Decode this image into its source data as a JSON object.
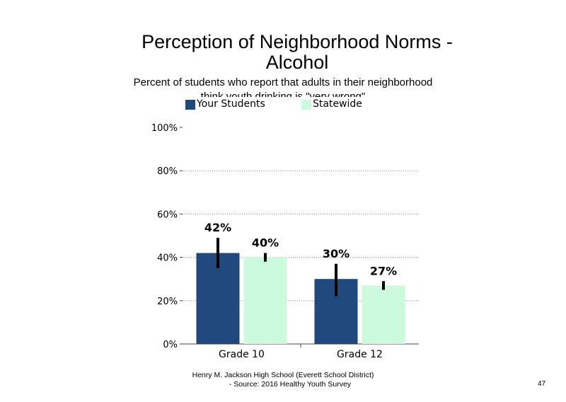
{
  "chart_data": {
    "type": "bar",
    "title": [
      "Perception of Neighborhood Norms -",
      "Alcohol"
    ],
    "subtitle": [
      "Percent of students who report that adults in their neighborhood",
      "think youth drinking is \"very wrong\""
    ],
    "categories": [
      "Grade 10",
      "Grade 12"
    ],
    "series": [
      {
        "name": "Your Students",
        "color": "#1f497d",
        "values": [
          42,
          30
        ],
        "labels": [
          "42%",
          "30%"
        ],
        "error_low": [
          35,
          22
        ],
        "error_high": [
          49,
          37
        ]
      },
      {
        "name": "Statewide",
        "color": "#ccfadc",
        "values": [
          40,
          27
        ],
        "labels": [
          "40%",
          "27%"
        ],
        "error_low": [
          38,
          25
        ],
        "error_high": [
          42,
          29
        ]
      }
    ],
    "ylim": [
      0,
      100
    ],
    "yticks": [
      0,
      20,
      40,
      60,
      80,
      100
    ],
    "ytick_labels": [
      "0%",
      "20%",
      "40%",
      "60%",
      "80%",
      "100%"
    ],
    "grid": true,
    "legend": "top"
  },
  "footer": {
    "line1": "Henry M. Jackson High School (Everett School District)",
    "line2": "- Source: 2016 Healthy Youth Survey"
  },
  "page_number": "47"
}
